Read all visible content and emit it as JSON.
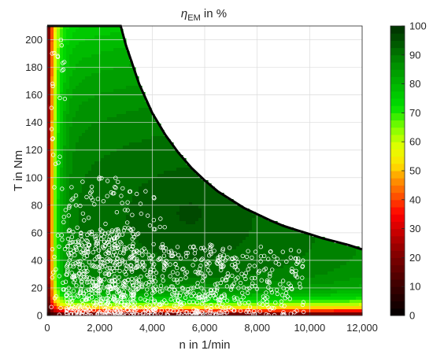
{
  "chart_data": {
    "type": "heatmap",
    "title": {
      "symbol": "η",
      "subscript": "EM",
      "suffix": " in %"
    },
    "xlabel": "n in 1/min",
    "ylabel": "T in Nm",
    "xlim": [
      0,
      12000
    ],
    "ylim": [
      0,
      210
    ],
    "x_ticks": [
      0,
      2000,
      4000,
      6000,
      8000,
      10000,
      12000
    ],
    "x_tick_labels": [
      "0",
      "2,000",
      "4,000",
      "6,000",
      "8,000",
      "10,000",
      "12,000"
    ],
    "y_ticks": [
      0,
      20,
      40,
      60,
      80,
      100,
      120,
      140,
      160,
      180,
      200
    ],
    "y_tick_labels": [
      "0",
      "20",
      "40",
      "60",
      "80",
      "100",
      "120",
      "140",
      "160",
      "180",
      "200"
    ],
    "grid": true,
    "colorbar": {
      "range": [
        0,
        100
      ],
      "ticks": [
        0,
        10,
        20,
        30,
        40,
        50,
        60,
        70,
        80,
        90,
        100
      ],
      "tick_labels": [
        "0",
        "10",
        "20",
        "30",
        "40",
        "50",
        "60",
        "70",
        "80",
        "90",
        "100"
      ],
      "level_step": 2.5,
      "colors": [
        {
          "value": 0,
          "color": "#000000"
        },
        {
          "value": 10,
          "color": "#3a0000"
        },
        {
          "value": 22,
          "color": "#8a0000"
        },
        {
          "value": 35,
          "color": "#ff0000"
        },
        {
          "value": 42,
          "color": "#ff5a00"
        },
        {
          "value": 48,
          "color": "#ffa000"
        },
        {
          "value": 52,
          "color": "#ffe000"
        },
        {
          "value": 58,
          "color": "#e6ff00"
        },
        {
          "value": 65,
          "color": "#80ff00"
        },
        {
          "value": 72,
          "color": "#00e000"
        },
        {
          "value": 80,
          "color": "#00b400"
        },
        {
          "value": 88,
          "color": "#008800"
        },
        {
          "value": 94,
          "color": "#005800"
        },
        {
          "value": 100,
          "color": "#003000"
        }
      ]
    },
    "max_torque_curve": {
      "base_speed": 2800,
      "max_torque": 210,
      "points": [
        [
          0,
          210
        ],
        [
          2800,
          210
        ],
        [
          3000,
          196
        ],
        [
          3500,
          168
        ],
        [
          4000,
          147
        ],
        [
          4500,
          131
        ],
        [
          5000,
          118
        ],
        [
          5500,
          107
        ],
        [
          6000,
          98
        ],
        [
          6500,
          90
        ],
        [
          7000,
          84
        ],
        [
          7500,
          78
        ],
        [
          8000,
          73.5
        ],
        [
          8500,
          69
        ],
        [
          9000,
          65
        ],
        [
          9500,
          62
        ],
        [
          10000,
          59
        ],
        [
          10500,
          56
        ],
        [
          11000,
          53.5
        ],
        [
          11500,
          51
        ],
        [
          12000,
          48
        ]
      ]
    },
    "efficiency_model": {
      "peak_efficiency": 94,
      "peak_at": [
        5400,
        75
      ]
    },
    "operating_points": {
      "marker": "circle",
      "color": "#ffffff",
      "clusters": [
        {
          "n_range": [
            700,
            3500
          ],
          "t_range": [
            0,
            62
          ],
          "count": 520
        },
        {
          "n_range": [
            3500,
            6800
          ],
          "t_range": [
            0,
            52
          ],
          "count": 330
        },
        {
          "n_range": [
            6800,
            9800
          ],
          "t_range": [
            0,
            50
          ],
          "count": 170
        },
        {
          "n_range": [
            700,
            3200
          ],
          "t_range": [
            62,
            100
          ],
          "count": 45
        },
        {
          "n_range": [
            150,
            700
          ],
          "t_range": [
            0,
            200
          ],
          "count": 45
        },
        {
          "n_range": [
            2500,
            4500
          ],
          "t_range": [
            62,
            95
          ],
          "count": 25
        }
      ]
    }
  }
}
